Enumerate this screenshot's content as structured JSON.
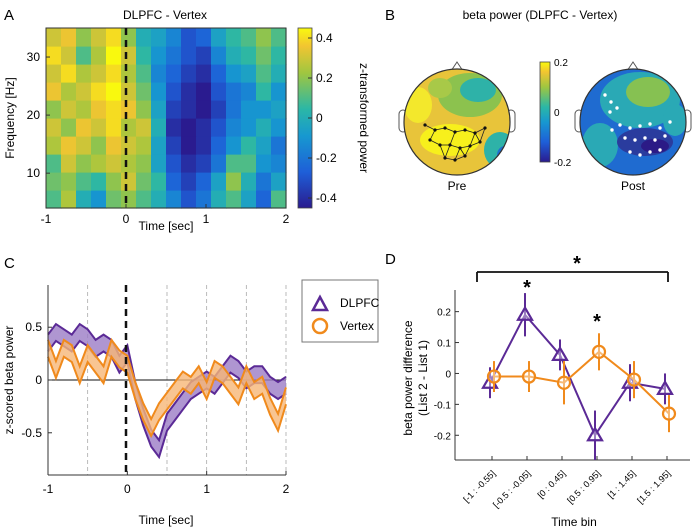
{
  "chart_data": [
    {
      "panel": "A",
      "type": "heatmap",
      "title": "DLPFC - Vertex",
      "xlabel": "Time [sec]",
      "ylabel": "Frequency [Hz]",
      "xlim": [
        -1,
        2
      ],
      "ylim": [
        4,
        35
      ],
      "xticks": [
        "-1",
        "0",
        "1",
        "2"
      ],
      "yticks": [
        "10",
        "20",
        "30"
      ],
      "colorbar": {
        "label": "z-transformed power",
        "ticks": [
          "0.4",
          "0.2",
          "0",
          "-0.2",
          "-0.4"
        ],
        "range": [
          -0.45,
          0.45
        ]
      },
      "event_line_x": 0,
      "note": "values approximated: positive (yellow) before 0 s, negative (blue) 0.3–1 s at 10–30 Hz",
      "rows_low_to_high_freq": [
        [
          0.1,
          0.25,
          0.0,
          -0.1,
          0.15,
          0.2,
          0.1,
          0.0,
          -0.15,
          -0.3,
          -0.2,
          0.0,
          0.1,
          -0.05,
          -0.25,
          0.1
        ],
        [
          0.15,
          0.2,
          0.1,
          0.05,
          0.2,
          0.3,
          0.15,
          0.05,
          -0.25,
          -0.35,
          -0.25,
          -0.05,
          0.2,
          0.0,
          -0.2,
          -0.05
        ],
        [
          0.1,
          0.3,
          0.2,
          0.25,
          0.3,
          0.25,
          0.2,
          -0.05,
          -0.3,
          -0.4,
          -0.35,
          -0.2,
          0.1,
          0.1,
          -0.1,
          -0.15
        ],
        [
          0.25,
          0.35,
          0.3,
          0.2,
          0.35,
          0.3,
          0.25,
          -0.05,
          -0.35,
          -0.45,
          -0.4,
          -0.25,
          -0.1,
          0.05,
          -0.05,
          -0.2
        ],
        [
          0.3,
          0.2,
          0.35,
          0.3,
          0.4,
          0.25,
          0.3,
          0.0,
          -0.4,
          -0.45,
          -0.4,
          -0.3,
          -0.15,
          -0.1,
          0.0,
          -0.1
        ],
        [
          0.2,
          0.3,
          0.25,
          0.35,
          0.4,
          0.35,
          0.2,
          -0.05,
          -0.35,
          -0.4,
          -0.45,
          -0.35,
          -0.2,
          -0.1,
          -0.1,
          -0.05
        ],
        [
          0.35,
          0.25,
          0.3,
          0.4,
          0.45,
          0.3,
          0.15,
          -0.1,
          -0.3,
          -0.4,
          -0.45,
          -0.3,
          -0.2,
          -0.15,
          0.05,
          -0.1
        ],
        [
          0.3,
          0.4,
          0.25,
          0.3,
          0.4,
          0.25,
          0.1,
          -0.15,
          -0.25,
          -0.35,
          -0.4,
          -0.25,
          -0.1,
          -0.05,
          0.1,
          0.0
        ],
        [
          0.4,
          0.3,
          0.1,
          0.25,
          0.45,
          0.3,
          0.05,
          -0.1,
          -0.2,
          -0.3,
          -0.35,
          -0.15,
          0.0,
          0.05,
          0.15,
          0.05
        ],
        [
          0.3,
          0.35,
          0.2,
          0.3,
          0.4,
          0.2,
          0.0,
          -0.05,
          -0.15,
          -0.3,
          -0.25,
          -0.05,
          0.05,
          0.1,
          0.2,
          0.1
        ]
      ]
    },
    {
      "panel": "B",
      "type": "topography",
      "title": "beta power (DLPFC - Vertex)",
      "maps": [
        "Pre",
        "Post"
      ],
      "colorbar": {
        "ticks": [
          "0.2",
          "0",
          "-0.2"
        ],
        "range": [
          -0.2,
          0.2
        ]
      }
    },
    {
      "panel": "C",
      "type": "line",
      "xlabel": "Time [sec]",
      "ylabel": "z-scored beta power",
      "xlim": [
        -1,
        2
      ],
      "ylim": [
        -0.9,
        0.9
      ],
      "xticks": [
        "-1",
        "0",
        "1",
        "2"
      ],
      "yticks": [
        "0.5",
        "0",
        "-0.5"
      ],
      "event_line_x": 0,
      "bin_lines_x": [
        -0.5,
        0.5,
        1,
        1.5,
        2
      ],
      "x": [
        -1.0,
        -0.9,
        -0.8,
        -0.7,
        -0.6,
        -0.5,
        -0.4,
        -0.3,
        -0.2,
        -0.1,
        0.0,
        0.1,
        0.2,
        0.3,
        0.4,
        0.5,
        0.6,
        0.7,
        0.8,
        0.9,
        1.0,
        1.1,
        1.2,
        1.3,
        1.4,
        1.5,
        1.6,
        1.7,
        1.8,
        1.9,
        2.0
      ],
      "series": [
        {
          "name": "DLPFC",
          "color": "#5b2a96",
          "values": [
            0.35,
            0.45,
            0.4,
            0.35,
            0.45,
            0.4,
            0.3,
            0.35,
            0.3,
            0.15,
            0.25,
            -0.1,
            -0.35,
            -0.55,
            -0.65,
            -0.4,
            -0.3,
            -0.2,
            -0.1,
            -0.05,
            0.0,
            -0.05,
            0.05,
            0.15,
            0.1,
            0.0,
            0.05,
            0.05,
            -0.05,
            -0.1,
            -0.05
          ],
          "sem": 0.08
        },
        {
          "name": "Vertex",
          "color": "#f08a1c",
          "values": [
            0.3,
            0.1,
            0.3,
            0.25,
            0.05,
            0.25,
            0.15,
            0.05,
            0.3,
            0.2,
            0.15,
            -0.1,
            -0.3,
            -0.45,
            -0.3,
            -0.2,
            -0.1,
            0.0,
            -0.05,
            0.05,
            -0.1,
            0.1,
            0.05,
            -0.05,
            -0.15,
            0.05,
            -0.1,
            -0.05,
            -0.25,
            -0.4,
            -0.15
          ],
          "sem": 0.08
        }
      ],
      "legend": [
        "DLPFC",
        "Vertex"
      ]
    },
    {
      "panel": "D",
      "type": "line",
      "xlabel": "Time bin",
      "ylabel_lines": [
        "beta power difference",
        "(List 2 - List 1)"
      ],
      "ylim": [
        -0.28,
        0.27
      ],
      "yticks": [
        "0.2",
        "0.1",
        "0",
        "-0.1",
        "-0.2"
      ],
      "categories": [
        "[-1 : -0.55]",
        "[-0.5 : -0.05]",
        "[0 : 0.45]",
        "[0.5 : 0.95]",
        "[1 : 1.45]",
        "[1.5 : 1.95]"
      ],
      "series": [
        {
          "name": "DLPFC",
          "color": "#5b2a96",
          "marker": "triangle",
          "values": [
            -0.03,
            0.19,
            0.06,
            -0.2,
            -0.03,
            -0.05
          ],
          "err": [
            0.05,
            0.07,
            0.05,
            0.08,
            0.06,
            0.05
          ]
        },
        {
          "name": "Vertex",
          "color": "#f08a1c",
          "marker": "circle",
          "values": [
            -0.01,
            -0.01,
            -0.03,
            0.07,
            -0.02,
            -0.13
          ],
          "err": [
            0.05,
            0.05,
            0.07,
            0.06,
            0.06,
            0.06
          ]
        }
      ],
      "significance": [
        {
          "type": "star",
          "category": 1,
          "label": "*"
        },
        {
          "type": "star",
          "category": 3,
          "label": "*"
        },
        {
          "type": "bracket",
          "from": 0,
          "to": 5,
          "label": "*"
        }
      ]
    }
  ],
  "panel_labels": {
    "a": "A",
    "b": "B",
    "c": "C",
    "d": "D"
  },
  "title_a": "DLPFC - Vertex",
  "xlabel_a": "Time [sec]",
  "ylabel_a": "Frequency [Hz]",
  "cbar_label_a": "z-transformed power",
  "title_b": "beta power (DLPFC - Vertex)",
  "map_pre": "Pre",
  "map_post": "Post",
  "xlabel_c": "Time [sec]",
  "ylabel_c": "z-scored beta power",
  "legend_dlpfc": "DLPFC",
  "legend_vertex": "Vertex",
  "xlabel_d": "Time bin",
  "ylabel_d1": "beta power difference",
  "ylabel_d2": "(List 2 - List 1)",
  "star": "*",
  "colors": {
    "dlpfc": "#5b2a96",
    "vertex": "#f08a1c",
    "dlpfc_fill": "#9b7cc6",
    "vertex_fill": "#f6b677"
  }
}
